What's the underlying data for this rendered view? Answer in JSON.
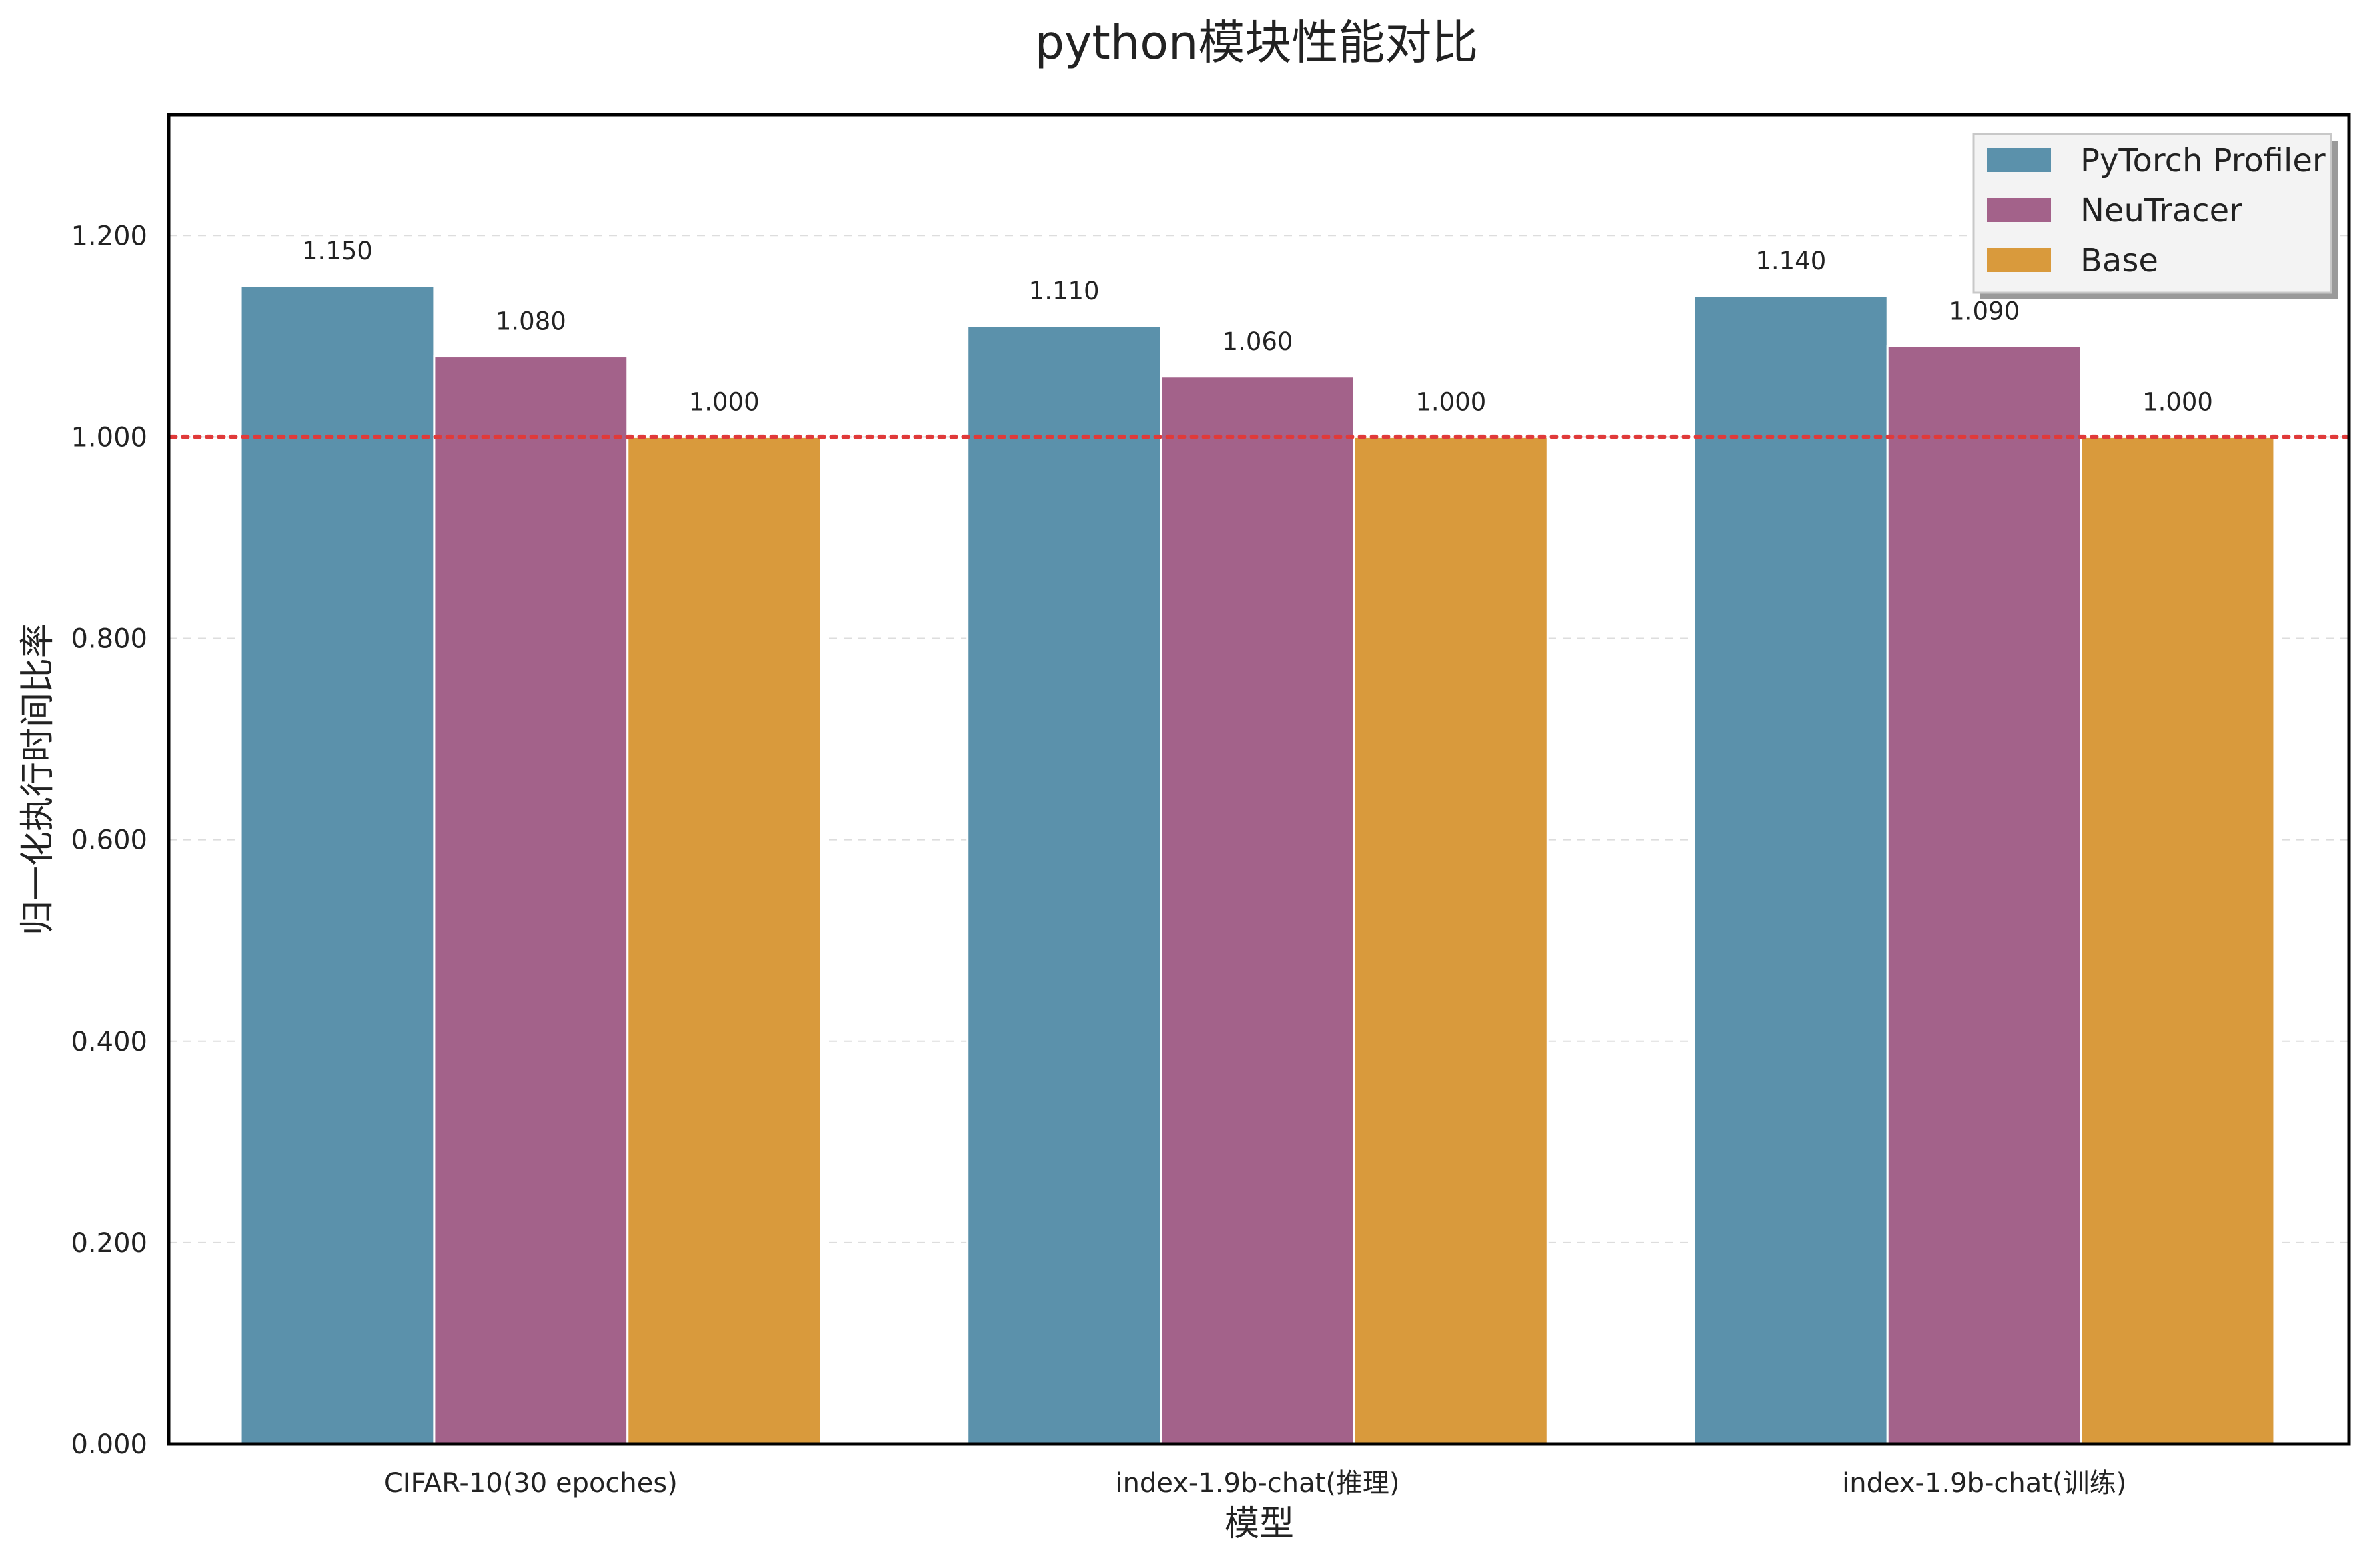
{
  "chart_data": {
    "type": "bar",
    "title": "python模块性能对比",
    "xlabel": "模型",
    "ylabel": "归一化执行时间比率",
    "categories": [
      "CIFAR-10(30 epoches)",
      "index-1.9b-chat(推理)",
      "index-1.9b-chat(训练)"
    ],
    "series": [
      {
        "name": "PyTorch Profiler",
        "values": [
          1.15,
          1.11,
          1.14
        ],
        "color": "#5b91ab"
      },
      {
        "name": "NeuTracer",
        "values": [
          1.08,
          1.06,
          1.09
        ],
        "color": "#a3628a"
      },
      {
        "name": "Base",
        "values": [
          1.0,
          1.0,
          1.0
        ],
        "color": "#d99a3c"
      }
    ],
    "value_labels": [
      [
        "1.150",
        "1.110",
        "1.140"
      ],
      [
        "1.080",
        "1.060",
        "1.090"
      ],
      [
        "1.000",
        "1.000",
        "1.000"
      ]
    ],
    "ylim": [
      0,
      1.32
    ],
    "yticks": [
      0,
      0.2,
      0.4,
      0.6,
      0.8,
      1.0,
      1.2
    ],
    "ytick_labels": [
      "0.000",
      "0.200",
      "0.400",
      "0.600",
      "0.800",
      "1.000",
      "1.200"
    ],
    "reference_line": {
      "y": 1.0,
      "style": "dotted",
      "color": "#e03a3a"
    },
    "grid": "horizontal dashed",
    "legend_position": "top-right"
  }
}
